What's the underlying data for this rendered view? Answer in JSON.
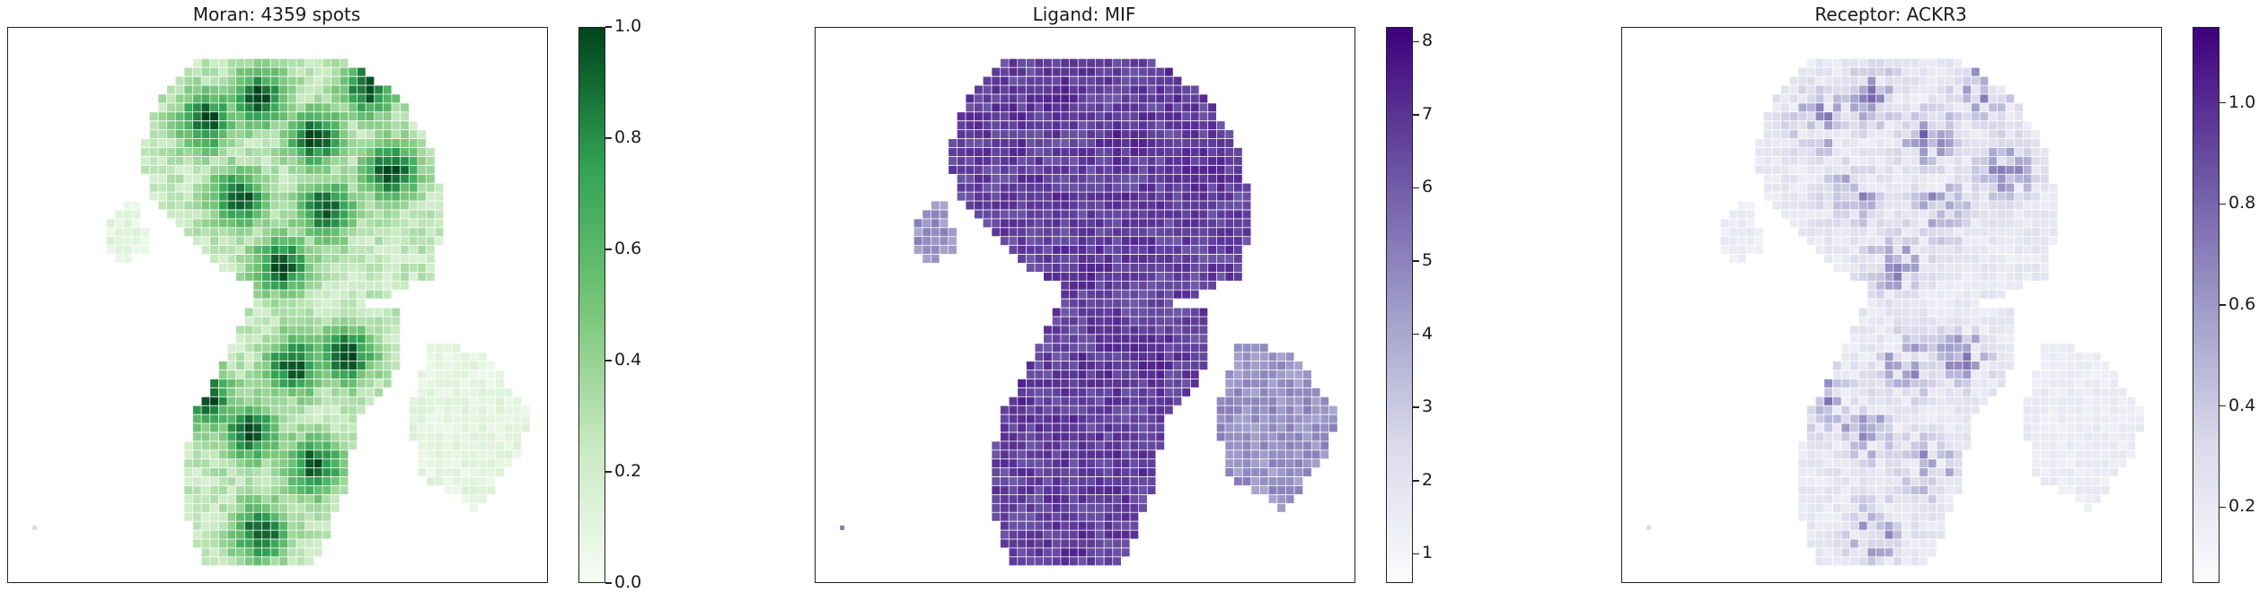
{
  "chart_data": [
    {
      "type": "heatmap",
      "title": "Moran: 4359 spots",
      "colormap": "Greens",
      "colorbar": {
        "min": 0.0,
        "max": 1.0,
        "ticks": [
          "0.0",
          "0.2",
          "0.4",
          "0.6",
          "0.8",
          "1.0"
        ],
        "tick_values": [
          0.0,
          0.2,
          0.4,
          0.6,
          0.8,
          1.0
        ]
      },
      "colors": [
        "#f7fcf5",
        "#c7e9c0",
        "#74c476",
        "#31a354",
        "#00441b"
      ]
    },
    {
      "type": "heatmap",
      "title": "Ligand: MIF",
      "colormap": "Purples",
      "colorbar": {
        "min": 0.6,
        "max": 8.2,
        "ticks": [
          "1",
          "2",
          "3",
          "4",
          "5",
          "6",
          "7",
          "8"
        ],
        "tick_values": [
          1,
          2,
          3,
          4,
          5,
          6,
          7,
          8
        ]
      },
      "colors": [
        "#fcfbfd",
        "#dadaeb",
        "#9e9ac8",
        "#6a51a3",
        "#3f007d"
      ]
    },
    {
      "type": "heatmap",
      "title": "Receptor: ACKR3",
      "colormap": "Purples",
      "colorbar": {
        "min": 0.05,
        "max": 1.15,
        "ticks": [
          "0.2",
          "0.4",
          "0.6",
          "0.8",
          "1.0"
        ],
        "tick_values": [
          0.2,
          0.4,
          0.6,
          0.8,
          1.0
        ]
      },
      "colors": [
        "#fcfbfd",
        "#dadaeb",
        "#9e9ac8",
        "#6a51a3",
        "#3f007d"
      ]
    }
  ]
}
